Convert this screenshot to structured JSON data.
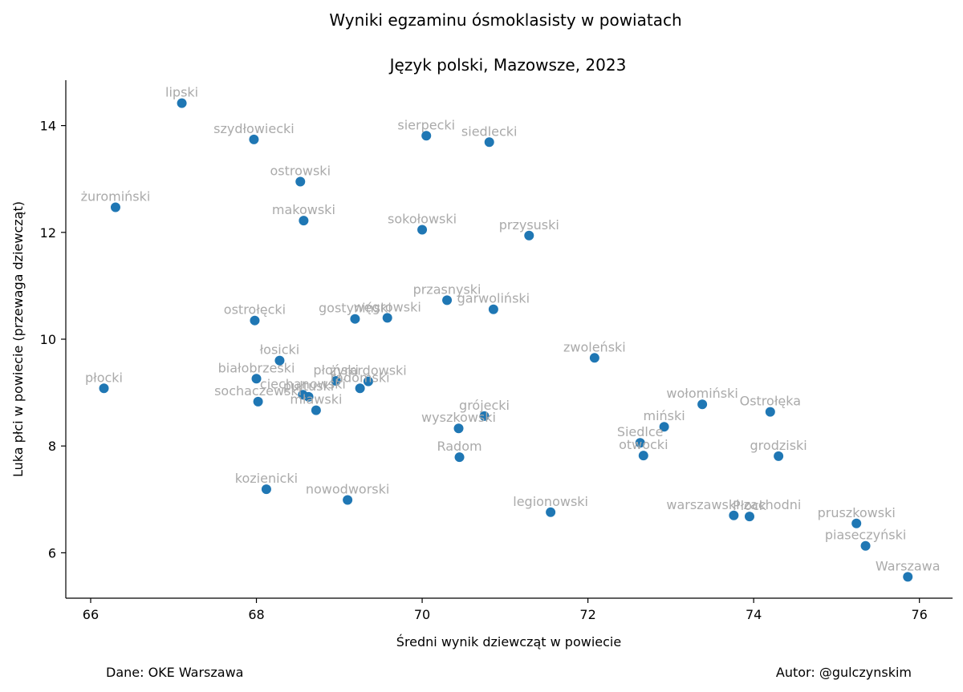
{
  "chart_data": {
    "type": "scatter",
    "title": "Wyniki egzaminu ósmoklasisty w powiatach",
    "subtitle": "Język polski, Mazowsze, 2023",
    "xlabel": "Średni wynik dziewcząt w powiecie",
    "ylabel": "Luka płci w powiecie (przewaga dziewcząt)",
    "xlim": [
      65.7,
      76.4
    ],
    "ylim": [
      5.15,
      14.85
    ],
    "xticks": [
      66,
      68,
      70,
      72,
      74,
      76
    ],
    "yticks": [
      6,
      8,
      10,
      12,
      14
    ],
    "grid": false,
    "point_color": "#1f77b4",
    "label_color": "#aaaaaa",
    "points": [
      {
        "label": "lipski",
        "x": 67.1,
        "y": 14.42
      },
      {
        "label": "szydłowiecki",
        "x": 67.97,
        "y": 13.74
      },
      {
        "label": "sierpecki",
        "x": 70.05,
        "y": 13.81
      },
      {
        "label": "siedlecki",
        "x": 70.81,
        "y": 13.69
      },
      {
        "label": "ostrowski",
        "x": 68.53,
        "y": 12.95
      },
      {
        "label": "żuromiński",
        "x": 66.3,
        "y": 12.47
      },
      {
        "label": "makowski",
        "x": 68.57,
        "y": 12.22
      },
      {
        "label": "sokołowski",
        "x": 70.0,
        "y": 12.05
      },
      {
        "label": "przysuski",
        "x": 71.29,
        "y": 11.94
      },
      {
        "label": "przasnyski",
        "x": 70.3,
        "y": 10.73
      },
      {
        "label": "garwoliński",
        "x": 70.86,
        "y": 10.56
      },
      {
        "label": "ostrołęcki",
        "x": 67.98,
        "y": 10.35
      },
      {
        "label": "gostyniński",
        "x": 69.19,
        "y": 10.38
      },
      {
        "label": "węgrowski",
        "x": 69.58,
        "y": 10.4
      },
      {
        "label": "łosicki",
        "x": 68.28,
        "y": 9.6
      },
      {
        "label": "zwoleński",
        "x": 72.08,
        "y": 9.65
      },
      {
        "label": "białobrzeski",
        "x": 68.0,
        "y": 9.26
      },
      {
        "label": "płoński",
        "x": 68.96,
        "y": 9.22
      },
      {
        "label": "żyrardowski",
        "x": 69.35,
        "y": 9.21
      },
      {
        "label": "płocki",
        "x": 66.16,
        "y": 9.08
      },
      {
        "label": "radomski",
        "x": 69.25,
        "y": 9.08
      },
      {
        "label": "ciechanowski",
        "x": 68.56,
        "y": 8.96
      },
      {
        "label": "pułtuski",
        "x": 68.63,
        "y": 8.92
      },
      {
        "label": "sochaczewski",
        "x": 68.02,
        "y": 8.83
      },
      {
        "label": "mławski",
        "x": 68.72,
        "y": 8.67
      },
      {
        "label": "wołomiński",
        "x": 73.38,
        "y": 8.78
      },
      {
        "label": "Ostrołęka",
        "x": 74.2,
        "y": 8.64
      },
      {
        "label": "grójecki",
        "x": 70.75,
        "y": 8.56
      },
      {
        "label": "wyszkowski",
        "x": 70.44,
        "y": 8.33
      },
      {
        "label": "miński",
        "x": 72.92,
        "y": 8.36
      },
      {
        "label": "Siedlce",
        "x": 72.63,
        "y": 8.06
      },
      {
        "label": "otwocki",
        "x": 72.67,
        "y": 7.82
      },
      {
        "label": "Radom",
        "x": 70.45,
        "y": 7.79
      },
      {
        "label": "grodziski",
        "x": 74.3,
        "y": 7.81
      },
      {
        "label": "kozienicki",
        "x": 68.12,
        "y": 7.19
      },
      {
        "label": "nowodworski",
        "x": 69.1,
        "y": 6.99
      },
      {
        "label": "legionowski",
        "x": 71.55,
        "y": 6.76
      },
      {
        "label": "warszawski zachodni",
        "x": 73.76,
        "y": 6.7
      },
      {
        "label": "Płock",
        "x": 73.95,
        "y": 6.68
      },
      {
        "label": "pruszkowski",
        "x": 75.24,
        "y": 6.55
      },
      {
        "label": "piaseczyński",
        "x": 75.35,
        "y": 6.13
      },
      {
        "label": "Warszawa",
        "x": 75.86,
        "y": 5.55
      }
    ]
  },
  "footer": {
    "source": "Dane: OKE Warszawa",
    "author": "Autor: @gulczynskim"
  }
}
